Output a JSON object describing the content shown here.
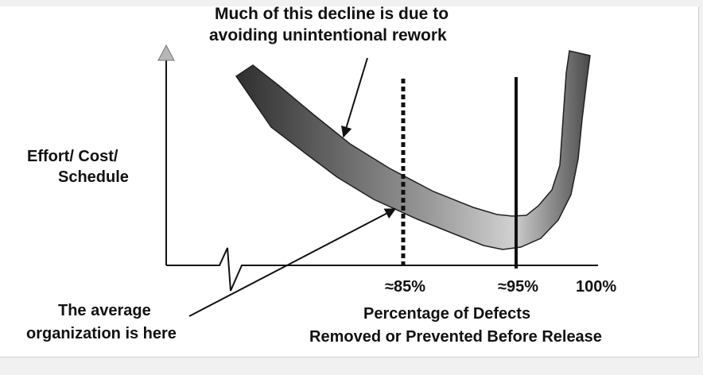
{
  "annotations": {
    "top_line1": "Much of this decline is due to",
    "top_line2": "avoiding unintentional rework",
    "bottom_line1": "The average",
    "bottom_line2": "organization is here"
  },
  "y_axis": {
    "line1": "Effort/ Cost/",
    "line2": "Schedule"
  },
  "x_axis": {
    "tick_85": "≈85%",
    "tick_95": "≈95%",
    "tick_100": "100%",
    "title_line1": "Percentage of Defects",
    "title_line2": "Removed or Prevented Before Release"
  },
  "colors": {
    "ink": "#111111",
    "curve_light": "#c2c2c2",
    "curve_dark": "#3a3a3a",
    "panel": "#ffffff",
    "background": "#f1f1f1"
  }
}
